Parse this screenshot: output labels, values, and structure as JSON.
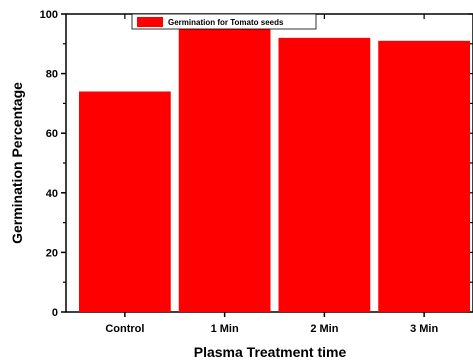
{
  "chart_data": {
    "type": "bar",
    "categories": [
      "Control",
      "1 Min",
      "2 Min",
      "3 Min"
    ],
    "series": [
      {
        "name": "Germination for Tomato seeds",
        "values": [
          74,
          95,
          92,
          91
        ],
        "color": "#ff0000"
      }
    ],
    "xlabel": "Plasma Treatment time",
    "ylabel": "Germination Percentage",
    "ylim": [
      0,
      100
    ],
    "yticks": [
      0,
      20,
      40,
      60,
      80,
      100
    ],
    "grid": false,
    "legend_position": "top-center"
  }
}
